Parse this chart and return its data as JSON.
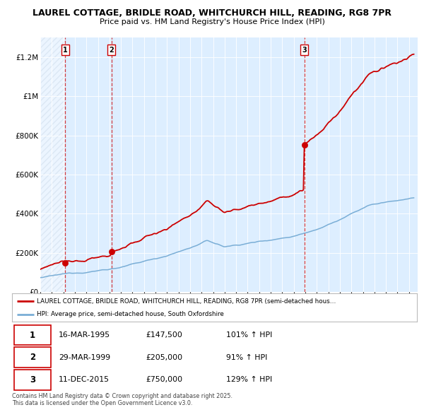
{
  "title_line1": "LAUREL COTTAGE, BRIDLE ROAD, WHITCHURCH HILL, READING, RG8 7PR",
  "title_line2": "Price paid vs. HM Land Registry's House Price Index (HPI)",
  "sale_date_strs": [
    "16-MAR-1995",
    "29-MAR-1999",
    "11-DEC-2015"
  ],
  "sale_prices": [
    147500,
    205000,
    750000
  ],
  "sale_labels": [
    "1",
    "2",
    "3"
  ],
  "sale_pct_hpi": [
    "101%",
    "91%",
    "129%"
  ],
  "legend_line1": "LAUREL COTTAGE, BRIDLE ROAD, WHITCHURCH HILL, READING, RG8 7PR (semi-detached hous…",
  "legend_line2": "HPI: Average price, semi-detached house, South Oxfordshire",
  "footer": "Contains HM Land Registry data © Crown copyright and database right 2025.\nThis data is licensed under the Open Government Licence v3.0.",
  "red_color": "#cc0000",
  "blue_color": "#7aaed6",
  "ylim_max": 1300000,
  "ylabel_ticks": [
    0,
    200000,
    400000,
    600000,
    800000,
    1000000,
    1200000
  ],
  "ylabel_labels": [
    "£0",
    "£200K",
    "£400K",
    "£600K",
    "£800K",
    "£1M",
    "£1.2M"
  ],
  "chart_bg": "#ddeeff",
  "hatch_color": "#c8d8e8"
}
